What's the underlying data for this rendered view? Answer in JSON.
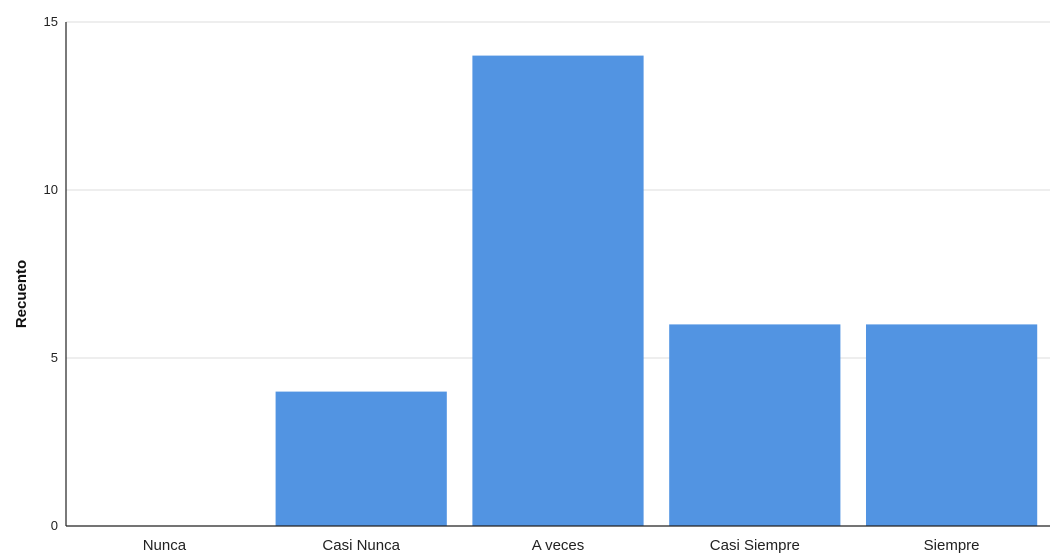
{
  "chart_data": {
    "type": "bar",
    "title": "",
    "xlabel": "",
    "ylabel": "Recuento",
    "categories": [
      "Nunca",
      "Casi Nunca",
      "A veces",
      "Casi Siempre",
      "Siempre"
    ],
    "values": [
      0,
      4,
      14,
      6,
      6
    ],
    "ylim": [
      0,
      15
    ],
    "yticks": [
      0,
      5,
      10,
      15
    ],
    "grid": true,
    "bar_color": "#5294e2"
  }
}
